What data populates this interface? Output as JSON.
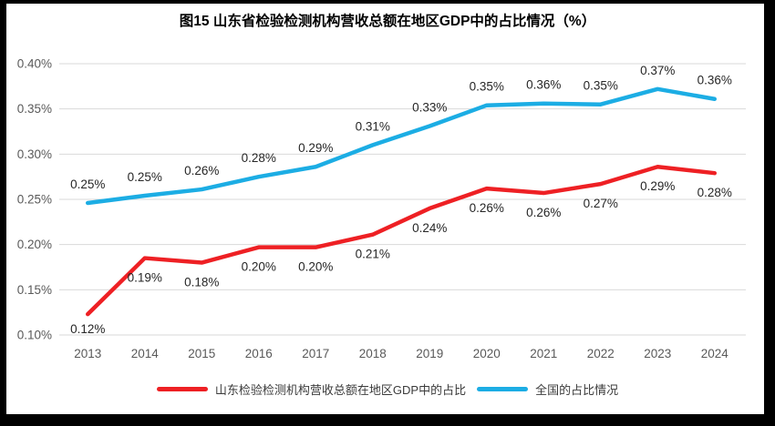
{
  "chart_data": {
    "type": "line",
    "title": "图15  山东省检验检测机构营收总额在地区GDP中的占比情况（%）",
    "categories": [
      "2013",
      "2014",
      "2015",
      "2016",
      "2017",
      "2018",
      "2019",
      "2020",
      "2021",
      "2022",
      "2023",
      "2024"
    ],
    "unit": "%",
    "ylim": [
      0.1,
      0.4
    ],
    "y_tick_step": 0.05,
    "grid": true,
    "legend_position": "bottom",
    "y_ticks": [
      {
        "value": 0.1,
        "label": "0.10%"
      },
      {
        "value": 0.15,
        "label": "0.15%"
      },
      {
        "value": 0.2,
        "label": "0.20%"
      },
      {
        "value": 0.25,
        "label": "0.25%"
      },
      {
        "value": 0.3,
        "label": "0.30%"
      },
      {
        "value": 0.35,
        "label": "0.35%"
      },
      {
        "value": 0.4,
        "label": "0.40%"
      }
    ],
    "series": [
      {
        "name": "山东检验检测机构营收总额在地区GDP中的占比",
        "color": "#ee2024",
        "values": [
          0.12,
          0.19,
          0.18,
          0.2,
          0.2,
          0.21,
          0.24,
          0.26,
          0.26,
          0.27,
          0.29,
          0.28
        ],
        "labels": [
          "0.12%",
          "0.19%",
          "0.18%",
          "0.20%",
          "0.20%",
          "0.21%",
          "0.24%",
          "0.26%",
          "0.26%",
          "0.27%",
          "0.29%",
          "0.28%"
        ],
        "plot_values": [
          0.123,
          0.185,
          0.18,
          0.197,
          0.197,
          0.211,
          0.24,
          0.262,
          0.257,
          0.267,
          0.286,
          0.279
        ],
        "label_position": "below"
      },
      {
        "name": "全国的占比情况",
        "color": "#1cade4",
        "values": [
          0.25,
          0.25,
          0.26,
          0.28,
          0.29,
          0.31,
          0.33,
          0.35,
          0.36,
          0.35,
          0.37,
          0.36
        ],
        "labels": [
          "0.25%",
          "0.25%",
          "0.26%",
          "0.28%",
          "0.29%",
          "0.31%",
          "0.33%",
          "0.35%",
          "0.36%",
          "0.35%",
          "0.37%",
          "0.36%"
        ],
        "plot_values": [
          0.246,
          0.254,
          0.261,
          0.275,
          0.286,
          0.31,
          0.331,
          0.354,
          0.356,
          0.355,
          0.372,
          0.361
        ],
        "label_position": "above"
      }
    ],
    "colors": {
      "gridline": "#d9d9d9",
      "tick_text": "#595959",
      "data_label_text": "#262626",
      "frame": "#000000",
      "background": "#ffffff"
    }
  }
}
